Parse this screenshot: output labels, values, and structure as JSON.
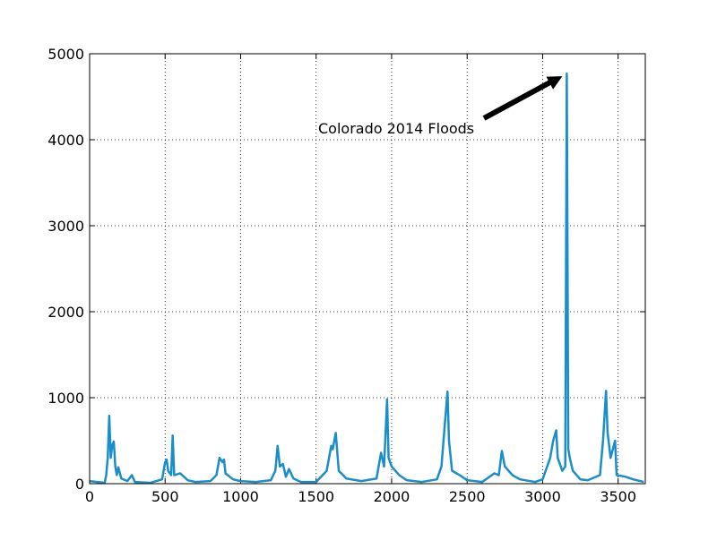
{
  "chart_data": {
    "type": "line",
    "annotation": "Colorado 2014 Floods",
    "x": [
      0,
      50,
      100,
      110,
      120,
      130,
      140,
      150,
      160,
      170,
      180,
      190,
      210,
      250,
      280,
      300,
      400,
      480,
      500,
      510,
      520,
      540,
      550,
      560,
      600,
      650,
      700,
      800,
      840,
      860,
      880,
      890,
      900,
      950,
      1000,
      1100,
      1200,
      1230,
      1245,
      1260,
      1280,
      1300,
      1320,
      1350,
      1400,
      1500,
      1570,
      1600,
      1610,
      1630,
      1650,
      1700,
      1800,
      1900,
      1930,
      1950,
      1970,
      1980,
      2000,
      2050,
      2100,
      2200,
      2300,
      2330,
      2350,
      2370,
      2380,
      2400,
      2450,
      2500,
      2600,
      2680,
      2710,
      2730,
      2750,
      2800,
      2850,
      2950,
      3000,
      3050,
      3070,
      3090,
      3100,
      3130,
      3150,
      3160,
      3170,
      3180,
      3200,
      3250,
      3300,
      3380,
      3400,
      3420,
      3430,
      3450,
      3480,
      3490,
      3550,
      3600,
      3670
    ],
    "series": [
      {
        "color": "#1a8ec9",
        "values": [
          30,
          20,
          10,
          100,
          300,
          790,
          300,
          450,
          490,
          200,
          100,
          190,
          60,
          30,
          100,
          20,
          10,
          50,
          250,
          280,
          150,
          100,
          560,
          100,
          120,
          40,
          20,
          30,
          100,
          300,
          250,
          280,
          120,
          50,
          30,
          20,
          40,
          150,
          440,
          200,
          230,
          80,
          170,
          60,
          20,
          20,
          150,
          440,
          400,
          590,
          150,
          60,
          30,
          60,
          360,
          200,
          980,
          300,
          200,
          100,
          40,
          20,
          50,
          200,
          640,
          1070,
          500,
          150,
          100,
          40,
          20,
          120,
          100,
          380,
          200,
          100,
          50,
          20,
          50,
          300,
          500,
          620,
          300,
          150,
          200,
          4770,
          400,
          300,
          150,
          50,
          40,
          100,
          500,
          1080,
          600,
          300,
          500,
          100,
          80,
          50,
          20
        ]
      }
    ],
    "xlim": [
      0,
      3680
    ],
    "ylim": [
      0,
      5000
    ],
    "xticks": [
      0,
      500,
      1000,
      1500,
      2000,
      2500,
      3000,
      3500
    ],
    "yticks": [
      0,
      1000,
      2000,
      3000,
      4000,
      5000
    ],
    "grid": true
  }
}
